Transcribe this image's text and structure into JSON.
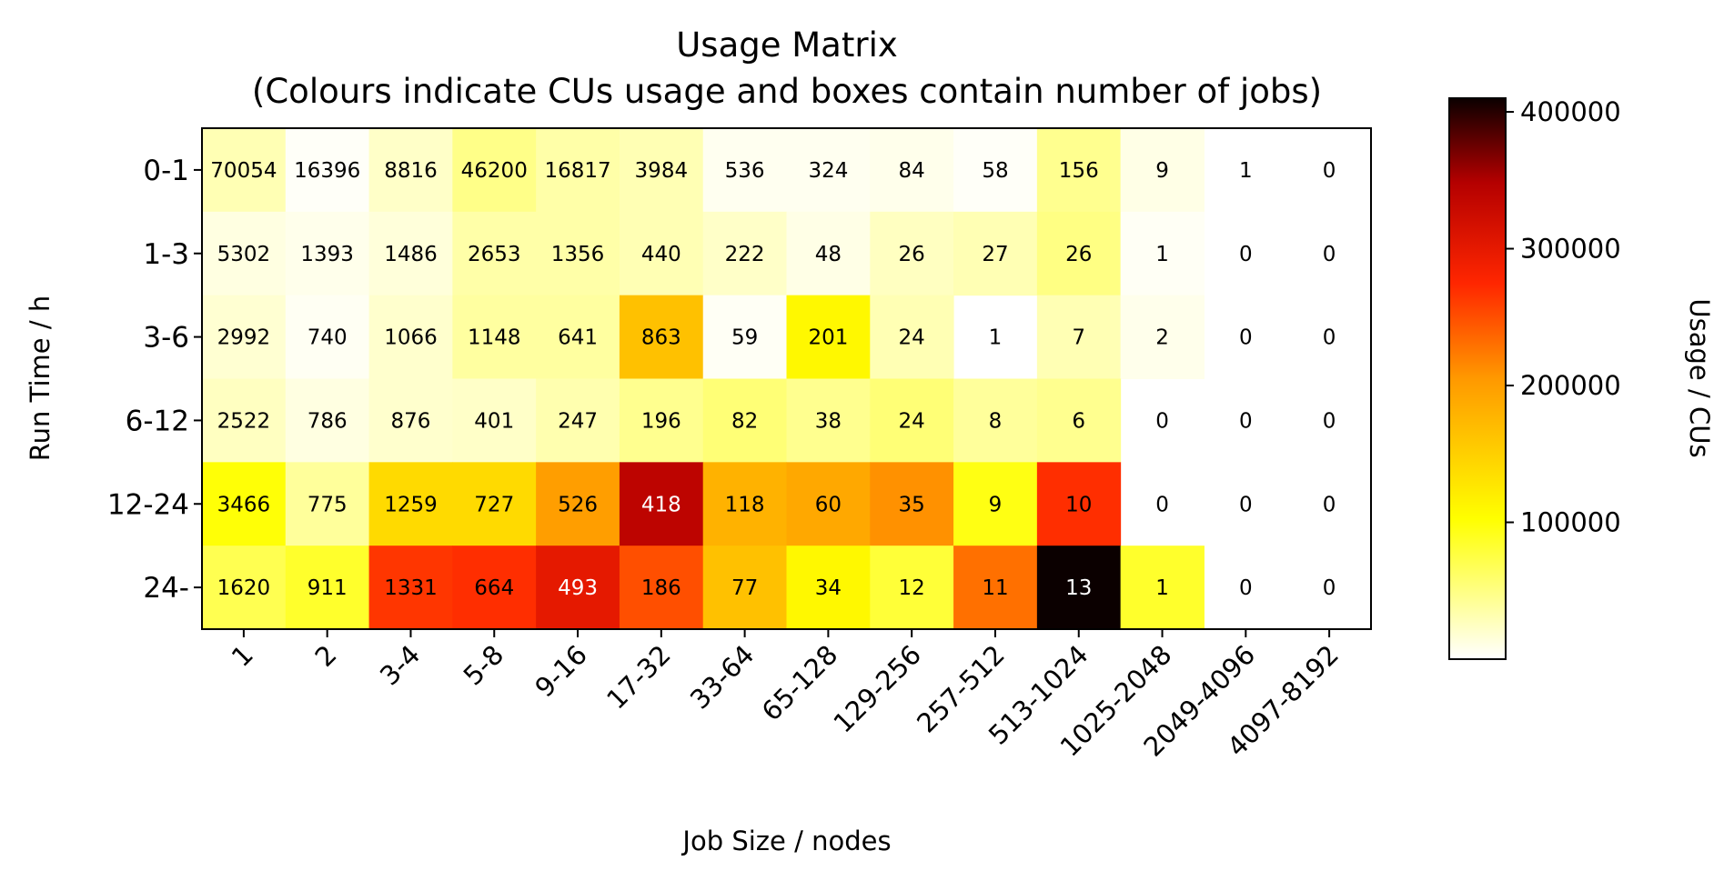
{
  "chart_data": {
    "type": "heatmap",
    "title": "Usage Matrix",
    "subtitle": "(Colours indicate CUs usage and boxes contain number of jobs)",
    "xlabel": "Job Size / nodes",
    "ylabel": "Run Time / h",
    "colorbar_label": "Usage / CUs",
    "colormap": "hot_r",
    "x_categories": [
      "1",
      "2",
      "3-4",
      "5-8",
      "9-16",
      "17-32",
      "33-64",
      "65-128",
      "129-256",
      "257-512",
      "513-1024",
      "1025-2048",
      "2049-4096",
      "4097-8192"
    ],
    "y_categories": [
      "0-1",
      "1-3",
      "3-6",
      "6-12",
      "12-24",
      "24-"
    ],
    "colorbar_range": [
      0,
      410000
    ],
    "colorbar_ticks": [
      100000,
      200000,
      300000,
      400000
    ],
    "job_counts": [
      [
        70054,
        16396,
        8816,
        46200,
        16817,
        3984,
        536,
        324,
        84,
        58,
        156,
        9,
        1,
        0
      ],
      [
        5302,
        1393,
        1486,
        2653,
        1356,
        440,
        222,
        48,
        26,
        27,
        26,
        1,
        0,
        0
      ],
      [
        2992,
        740,
        1066,
        1148,
        641,
        863,
        59,
        201,
        24,
        1,
        7,
        2,
        0,
        0
      ],
      [
        2522,
        786,
        876,
        401,
        247,
        196,
        82,
        38,
        24,
        8,
        6,
        0,
        0,
        0
      ],
      [
        3466,
        775,
        1259,
        727,
        526,
        418,
        118,
        60,
        35,
        9,
        10,
        0,
        0,
        0
      ],
      [
        1620,
        911,
        1331,
        664,
        493,
        186,
        77,
        34,
        12,
        11,
        13,
        1,
        0,
        0
      ]
    ],
    "usage_cus": [
      [
        30000,
        3000,
        22000,
        48000,
        35000,
        30000,
        6000,
        6000,
        8000,
        3000,
        45000,
        10000,
        0,
        0
      ],
      [
        12000,
        8000,
        15000,
        35000,
        35000,
        30000,
        22000,
        10000,
        25000,
        30000,
        50000,
        4000,
        0,
        0
      ],
      [
        18000,
        5000,
        20000,
        38000,
        38000,
        165000,
        4000,
        110000,
        30000,
        0,
        30000,
        8000,
        0,
        0
      ],
      [
        25000,
        12000,
        20000,
        22000,
        32000,
        45000,
        55000,
        45000,
        55000,
        40000,
        45000,
        0,
        0,
        0
      ],
      [
        100000,
        40000,
        140000,
        140000,
        200000,
        340000,
        180000,
        190000,
        210000,
        95000,
        270000,
        0,
        0,
        0
      ],
      [
        70000,
        85000,
        265000,
        270000,
        300000,
        250000,
        165000,
        110000,
        80000,
        230000,
        410000,
        85000,
        0,
        0
      ]
    ]
  }
}
